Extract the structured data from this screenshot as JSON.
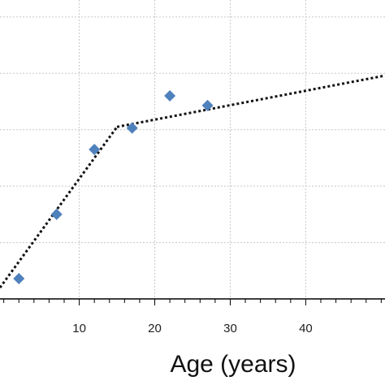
{
  "chart_data": {
    "type": "scatter",
    "xlabel": "Age (years)",
    "ylabel": "",
    "xlim": [
      -0.5,
      50.5
    ],
    "ylim": [
      0,
      5.3
    ],
    "x_ticks": [
      10,
      20,
      30,
      40
    ],
    "x_minor_step": 2,
    "y_grid": [
      1,
      2,
      3,
      4,
      5
    ],
    "grid": true,
    "colors": {
      "marker": "#4f81bd",
      "trend": "#111111",
      "grid": "#c8c8c8",
      "axis": "#000000"
    },
    "series": [
      {
        "marker": "diamond",
        "x": [
          2,
          7,
          12,
          17,
          22,
          27
        ],
        "y": [
          0.36,
          1.5,
          2.65,
          3.03,
          3.6,
          3.43
        ]
      }
    ],
    "trendlines": [
      {
        "x": [
          -0.5,
          15
        ],
        "y": [
          0.2,
          3.05
        ]
      },
      {
        "x": [
          15,
          50.5
        ],
        "y": [
          3.05,
          3.96
        ]
      }
    ]
  }
}
